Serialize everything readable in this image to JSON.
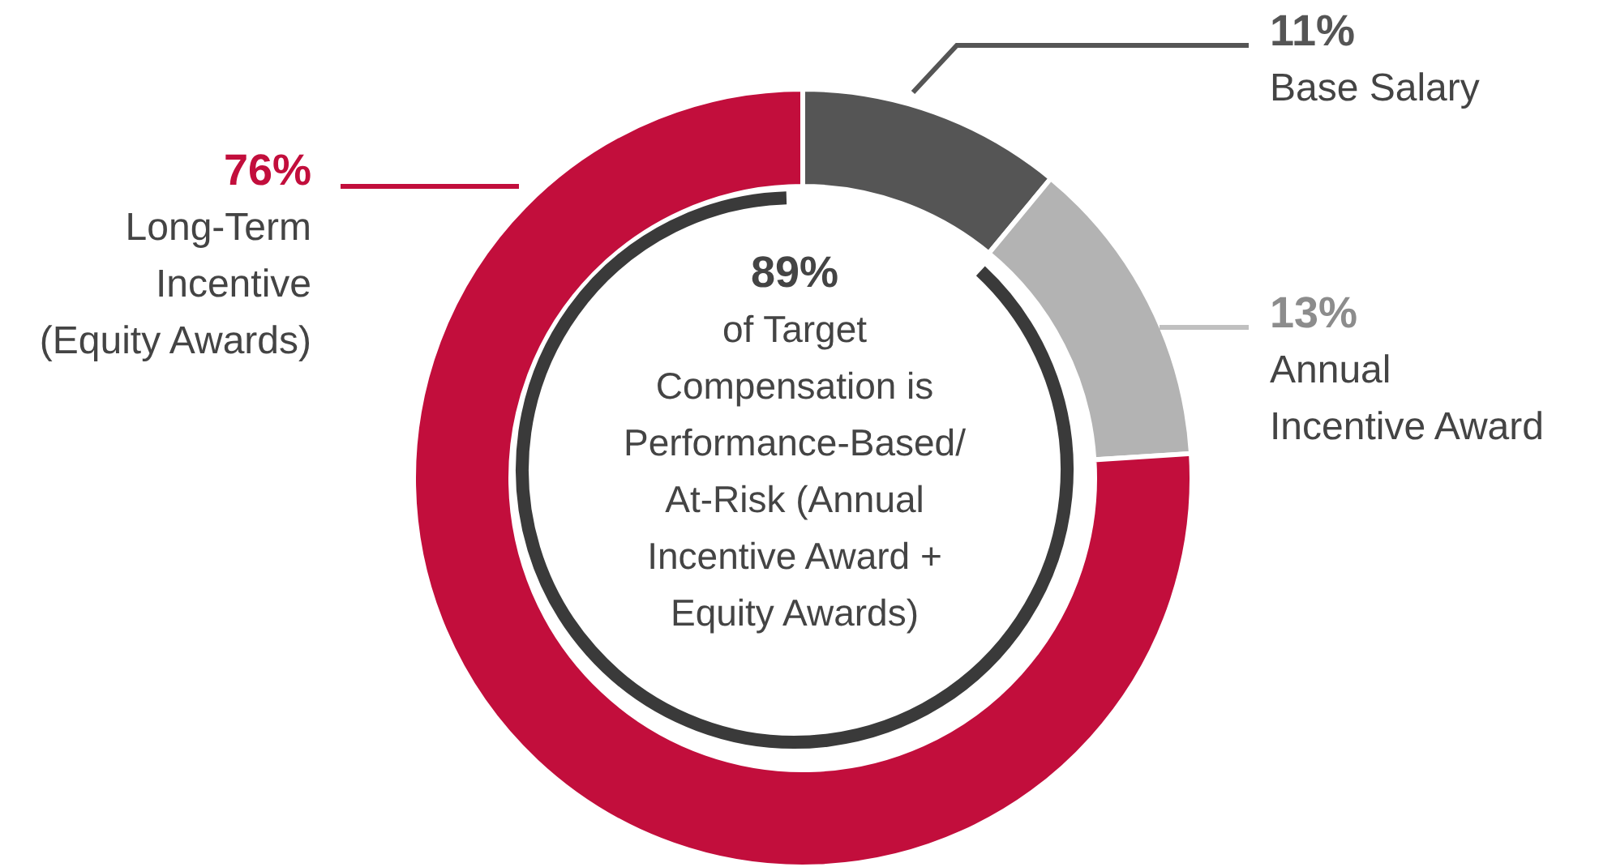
{
  "chart_data": {
    "type": "donut",
    "categories": [
      "Base Salary",
      "Annual\nIncentive Award",
      "Long-Term\nIncentive\n(Equity Awards)"
    ],
    "values": [
      11,
      13,
      76
    ],
    "value_labels": [
      "11%",
      "13%",
      "76%"
    ],
    "colors": [
      "#555555",
      "#b3b3b3",
      "#c20e3c"
    ],
    "annotations": [
      "89%",
      "of Target\nCompensation is\nPerformance-Based/\nAt-Risk (Annual\nIncentive Award +\nEquity Awards)"
    ]
  }
}
